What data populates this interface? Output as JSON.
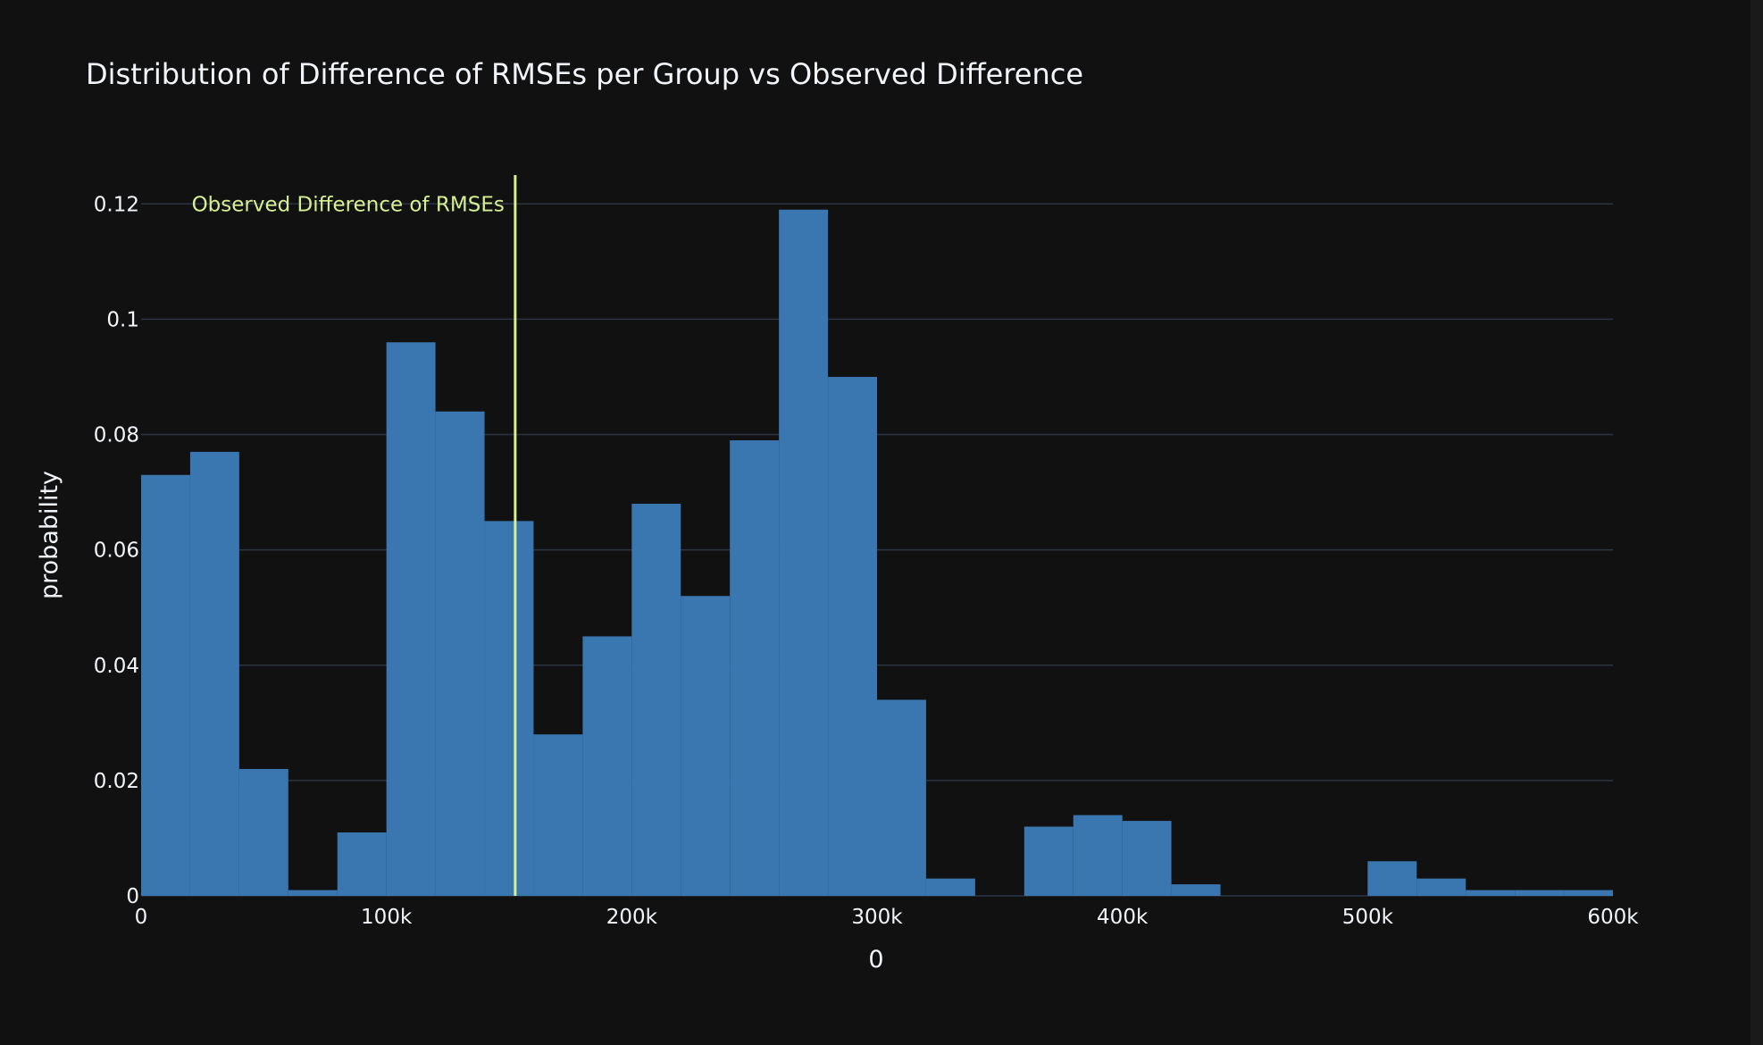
{
  "chart_data": {
    "type": "bar",
    "title": "Distribution of Difference of RMSEs per Group vs Observed Difference",
    "xlabel": "0",
    "ylabel": "probability",
    "xlim": [
      0,
      600000
    ],
    "ylim": [
      0,
      0.125
    ],
    "x_ticks": [
      0,
      100000,
      200000,
      300000,
      400000,
      500000,
      600000
    ],
    "x_tick_labels": [
      "0",
      "100k",
      "200k",
      "300k",
      "400k",
      "500k",
      "600k"
    ],
    "y_ticks": [
      0,
      0.02,
      0.04,
      0.06,
      0.08,
      0.1,
      0.12
    ],
    "y_tick_labels": [
      "0",
      "0.02",
      "0.04",
      "0.06",
      "0.08",
      "0.1",
      "0.12"
    ],
    "grid": true,
    "bin_width": 20000,
    "bin_starts": [
      0,
      20000,
      40000,
      60000,
      80000,
      100000,
      120000,
      140000,
      160000,
      180000,
      200000,
      220000,
      240000,
      260000,
      280000,
      300000,
      320000,
      340000,
      360000,
      380000,
      400000,
      420000,
      440000,
      460000,
      480000,
      500000,
      520000,
      540000,
      560000,
      580000
    ],
    "values": [
      0.073,
      0.077,
      0.022,
      0.001,
      0.011,
      0.096,
      0.084,
      0.065,
      0.028,
      0.045,
      0.068,
      0.052,
      0.079,
      0.119,
      0.09,
      0.034,
      0.003,
      0,
      0.012,
      0.014,
      0.013,
      0.002,
      0,
      0,
      0,
      0.006,
      0.003,
      0.001,
      0.001,
      0.001
    ],
    "bar_color": "#3a76b0",
    "observed_line": {
      "x": 152500,
      "label": "Observed Difference of RMSEs",
      "color": "#d6f08f"
    }
  }
}
